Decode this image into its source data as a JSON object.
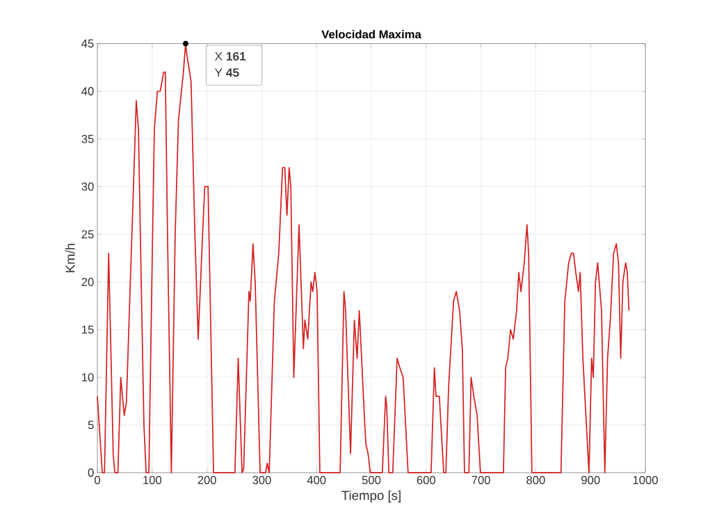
{
  "chart_data": {
    "type": "line",
    "title": "Velocidad Maxima",
    "xlabel": "Tiempo [s]",
    "ylabel": "Km/h",
    "x": [
      0,
      9,
      13,
      20.6,
      29,
      32,
      37.5,
      42.7,
      49,
      53,
      71,
      75,
      80,
      85,
      89,
      94,
      98,
      104,
      109.5,
      114.7,
      121,
      124,
      128,
      135,
      142,
      148,
      157,
      161,
      163,
      171,
      178,
      184,
      192,
      196,
      202,
      212,
      251,
      257,
      264,
      267,
      276.6,
      279,
      284,
      288,
      297,
      307,
      310,
      313.6,
      323,
      331,
      338,
      342,
      346,
      350,
      353,
      358.5,
      368,
      376,
      378.6,
      384,
      390,
      393,
      397,
      401,
      406,
      443,
      450,
      453,
      462,
      469,
      474,
      478,
      488,
      490,
      494,
      498,
      520,
      526,
      528,
      532,
      539,
      547,
      552,
      558,
      567,
      609,
      615,
      618,
      624,
      632,
      636,
      641,
      650,
      655,
      661,
      666,
      670,
      678,
      682,
      687,
      693,
      699,
      741,
      745,
      749,
      754,
      759,
      765,
      769,
      773,
      779,
      784,
      787,
      793,
      846,
      853,
      860,
      865,
      869,
      873,
      878,
      881,
      886,
      897,
      902,
      905,
      909,
      913,
      920,
      926,
      931,
      936,
      942,
      947,
      951,
      955,
      959,
      964,
      967,
      970
    ],
    "values": [
      8,
      0,
      0,
      23,
      1.8,
      0,
      0,
      10,
      6,
      7.4,
      39,
      36,
      20,
      5,
      0,
      0,
      15,
      36,
      40,
      40,
      42,
      42,
      25,
      0,
      25,
      37,
      42,
      45,
      44,
      41,
      25,
      14,
      25,
      30,
      30,
      0,
      0,
      12,
      0,
      0.4,
      19,
      18,
      24,
      20,
      0,
      0,
      1,
      0,
      18,
      23,
      32,
      32,
      27,
      32,
      30,
      10,
      26,
      13,
      16,
      14,
      20,
      19,
      21,
      19,
      0,
      0,
      19,
      17,
      2,
      16,
      12,
      17,
      5,
      3,
      2,
      0,
      0,
      8,
      7,
      0,
      0,
      12,
      11,
      10,
      0,
      0,
      11,
      8,
      8,
      0,
      0,
      9,
      18,
      19,
      17,
      13,
      0,
      0,
      10,
      8,
      6,
      0,
      0,
      11,
      12,
      15,
      14,
      17,
      21,
      19,
      22,
      26,
      23,
      0,
      0,
      18,
      22,
      23,
      23,
      21,
      19,
      21,
      12,
      0,
      12,
      10,
      20,
      22,
      17,
      0,
      12,
      16,
      23,
      24,
      22,
      12,
      20,
      22,
      21,
      17
    ],
    "color": "#d42222",
    "xlim": [
      0,
      1000
    ],
    "ylim": [
      0,
      45
    ],
    "xticks": [
      0,
      100,
      200,
      300,
      400,
      500,
      600,
      700,
      800,
      900,
      1000
    ],
    "yticks": [
      0,
      5,
      10,
      15,
      20,
      25,
      30,
      35,
      40,
      45
    ],
    "grid": true,
    "marker": "none",
    "line_style": "solid",
    "annotations": [
      {
        "text": "X **161**",
        "x": 161,
        "y": 45
      },
      "Y **45**"
    ]
  }
}
